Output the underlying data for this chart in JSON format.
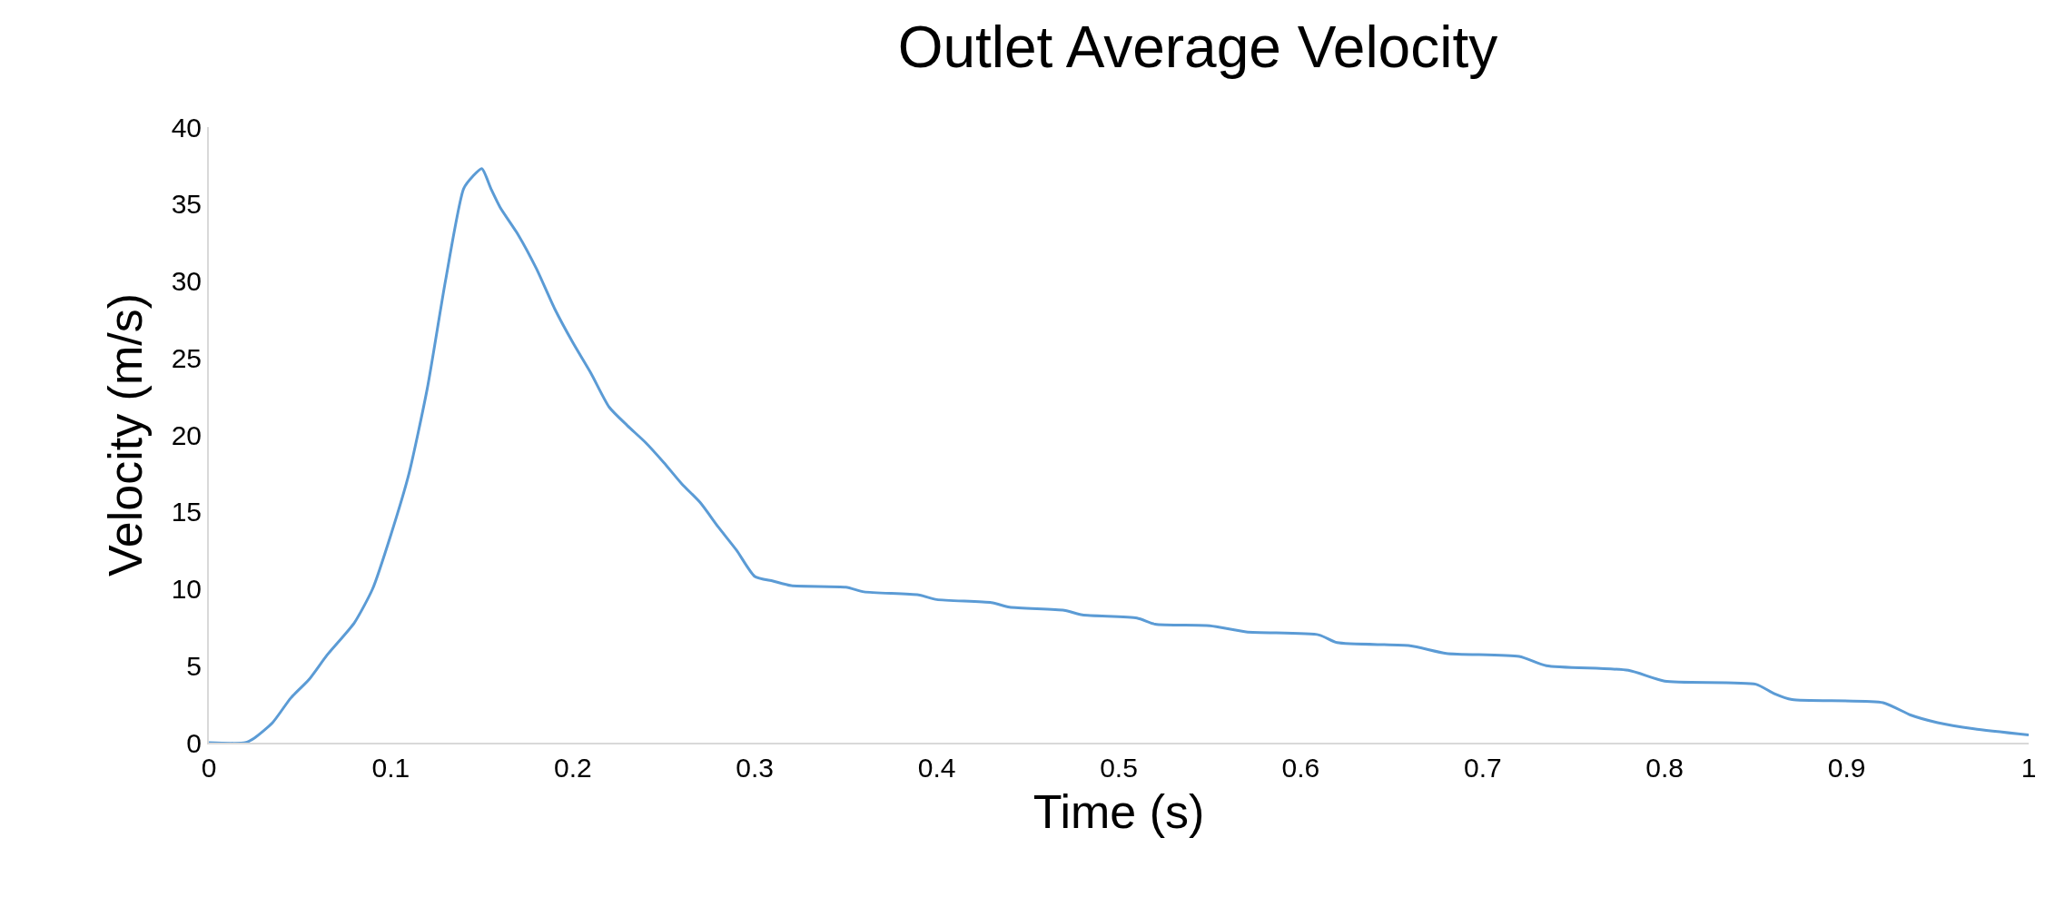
{
  "chart_data": {
    "type": "line",
    "title": "Outlet Average Velocity",
    "xlabel": "Time (s)",
    "ylabel": "Velocity (m/s)",
    "x": [
      0,
      0.02,
      0.025,
      0.035,
      0.045,
      0.055,
      0.065,
      0.08,
      0.09,
      0.1,
      0.11,
      0.12,
      0.13,
      0.14,
      0.145,
      0.15,
      0.155,
      0.16,
      0.17,
      0.18,
      0.19,
      0.2,
      0.21,
      0.22,
      0.23,
      0.24,
      0.25,
      0.26,
      0.27,
      0.28,
      0.29,
      0.3,
      0.31,
      0.32,
      0.35,
      0.36,
      0.39,
      0.4,
      0.43,
      0.44,
      0.47,
      0.48,
      0.51,
      0.52,
      0.55,
      0.57,
      0.61,
      0.62,
      0.66,
      0.68,
      0.72,
      0.735,
      0.78,
      0.8,
      0.85,
      0.86,
      0.87,
      0.92,
      0.935,
      0.95,
      0.97,
      1.0
    ],
    "series": [
      {
        "color": "#5b9bd5",
        "values": [
          0,
          0,
          0.3,
          1.3,
          2.9,
          4.1,
          5.7,
          7.8,
          10.0,
          13.5,
          17.5,
          23,
          30,
          36,
          36.8,
          37.3,
          36,
          34.8,
          33,
          30.8,
          28.2,
          26,
          24,
          21.8,
          20.6,
          19.5,
          18.2,
          16.8,
          15.6,
          14,
          12.5,
          10.8,
          10.5,
          10.2,
          10.1,
          9.8,
          9.6,
          9.3,
          9.1,
          8.8,
          8.6,
          8.3,
          8.1,
          7.7,
          7.6,
          7.2,
          7.0,
          6.5,
          6.3,
          5.8,
          5.6,
          5.0,
          4.7,
          4.0,
          3.8,
          3.2,
          2.8,
          2.6,
          1.8,
          1.3,
          0.9,
          0.5
        ]
      }
    ],
    "xlim": [
      0,
      1
    ],
    "xticks": [
      0,
      0.1,
      0.2,
      0.3,
      0.4,
      0.5,
      0.6,
      0.7,
      0.8,
      0.9,
      1
    ],
    "ylim": [
      0,
      40
    ],
    "yticks": [
      0,
      5,
      10,
      15,
      20,
      25,
      30,
      35,
      40
    ],
    "grid": false,
    "legend": false,
    "marker": "none",
    "line_style": "solid"
  }
}
